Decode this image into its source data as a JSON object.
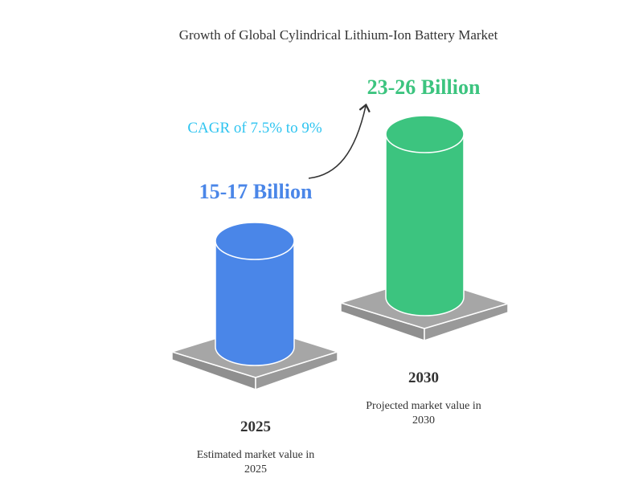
{
  "title": "Growth of Global Cylindrical Lithium-Ion Battery Market",
  "growth_label": "CAGR of 7.5% to 9%",
  "colors": {
    "blue": "#4A86E8",
    "green": "#3CC47F",
    "cagr": "#2EC4F0",
    "plate": "#A6A6A6",
    "text": "#333333"
  },
  "items": [
    {
      "year": "2025",
      "value": "15-17 Billion",
      "desc_line1": "Estimated market value in",
      "desc_line2": "2025"
    },
    {
      "year": "2030",
      "value": "23-26 Billion",
      "desc_line1": "Projected market value in",
      "desc_line2": "2030"
    }
  ]
}
